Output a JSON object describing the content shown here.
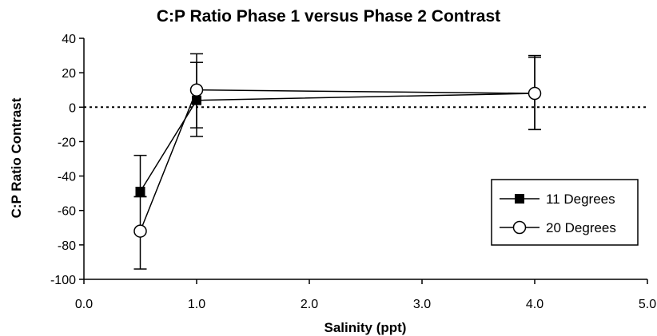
{
  "chart_data": {
    "type": "scatter",
    "title": "C:P Ratio Phase 1 versus Phase 2 Contrast",
    "xlabel": "Salinity (ppt)",
    "ylabel": "C:P Ratio Contrast",
    "xlim": [
      0,
      5
    ],
    "ylim": [
      -100,
      40
    ],
    "x_ticks": [
      0,
      1,
      2,
      3,
      4,
      5
    ],
    "x_tick_labels": [
      "0.0",
      "1.0",
      "2.0",
      "3.0",
      "4.0",
      "5.0"
    ],
    "y_ticks": [
      -100,
      -80,
      -60,
      -40,
      -20,
      0,
      20,
      40
    ],
    "y_tick_labels": [
      "-100",
      "-80",
      "-60",
      "-40",
      "-20",
      "0",
      "20",
      "40"
    ],
    "reference_line": {
      "y": 0,
      "style": "dotted"
    },
    "legend_position": "right",
    "series": [
      {
        "name": "11 Degrees",
        "marker": "filled-square",
        "x": [
          0.5,
          1.0,
          4.0
        ],
        "y": [
          -49,
          4,
          8
        ],
        "error_low": [
          -52,
          -12,
          -13
        ],
        "error_high": [
          -28,
          26,
          29
        ]
      },
      {
        "name": "20 Degrees",
        "marker": "open-circle",
        "x": [
          0.5,
          1.0,
          4.0
        ],
        "y": [
          -72,
          10,
          8
        ],
        "error_low": [
          -94,
          -17,
          -13
        ],
        "error_high": [
          -52,
          31,
          30
        ]
      }
    ]
  }
}
